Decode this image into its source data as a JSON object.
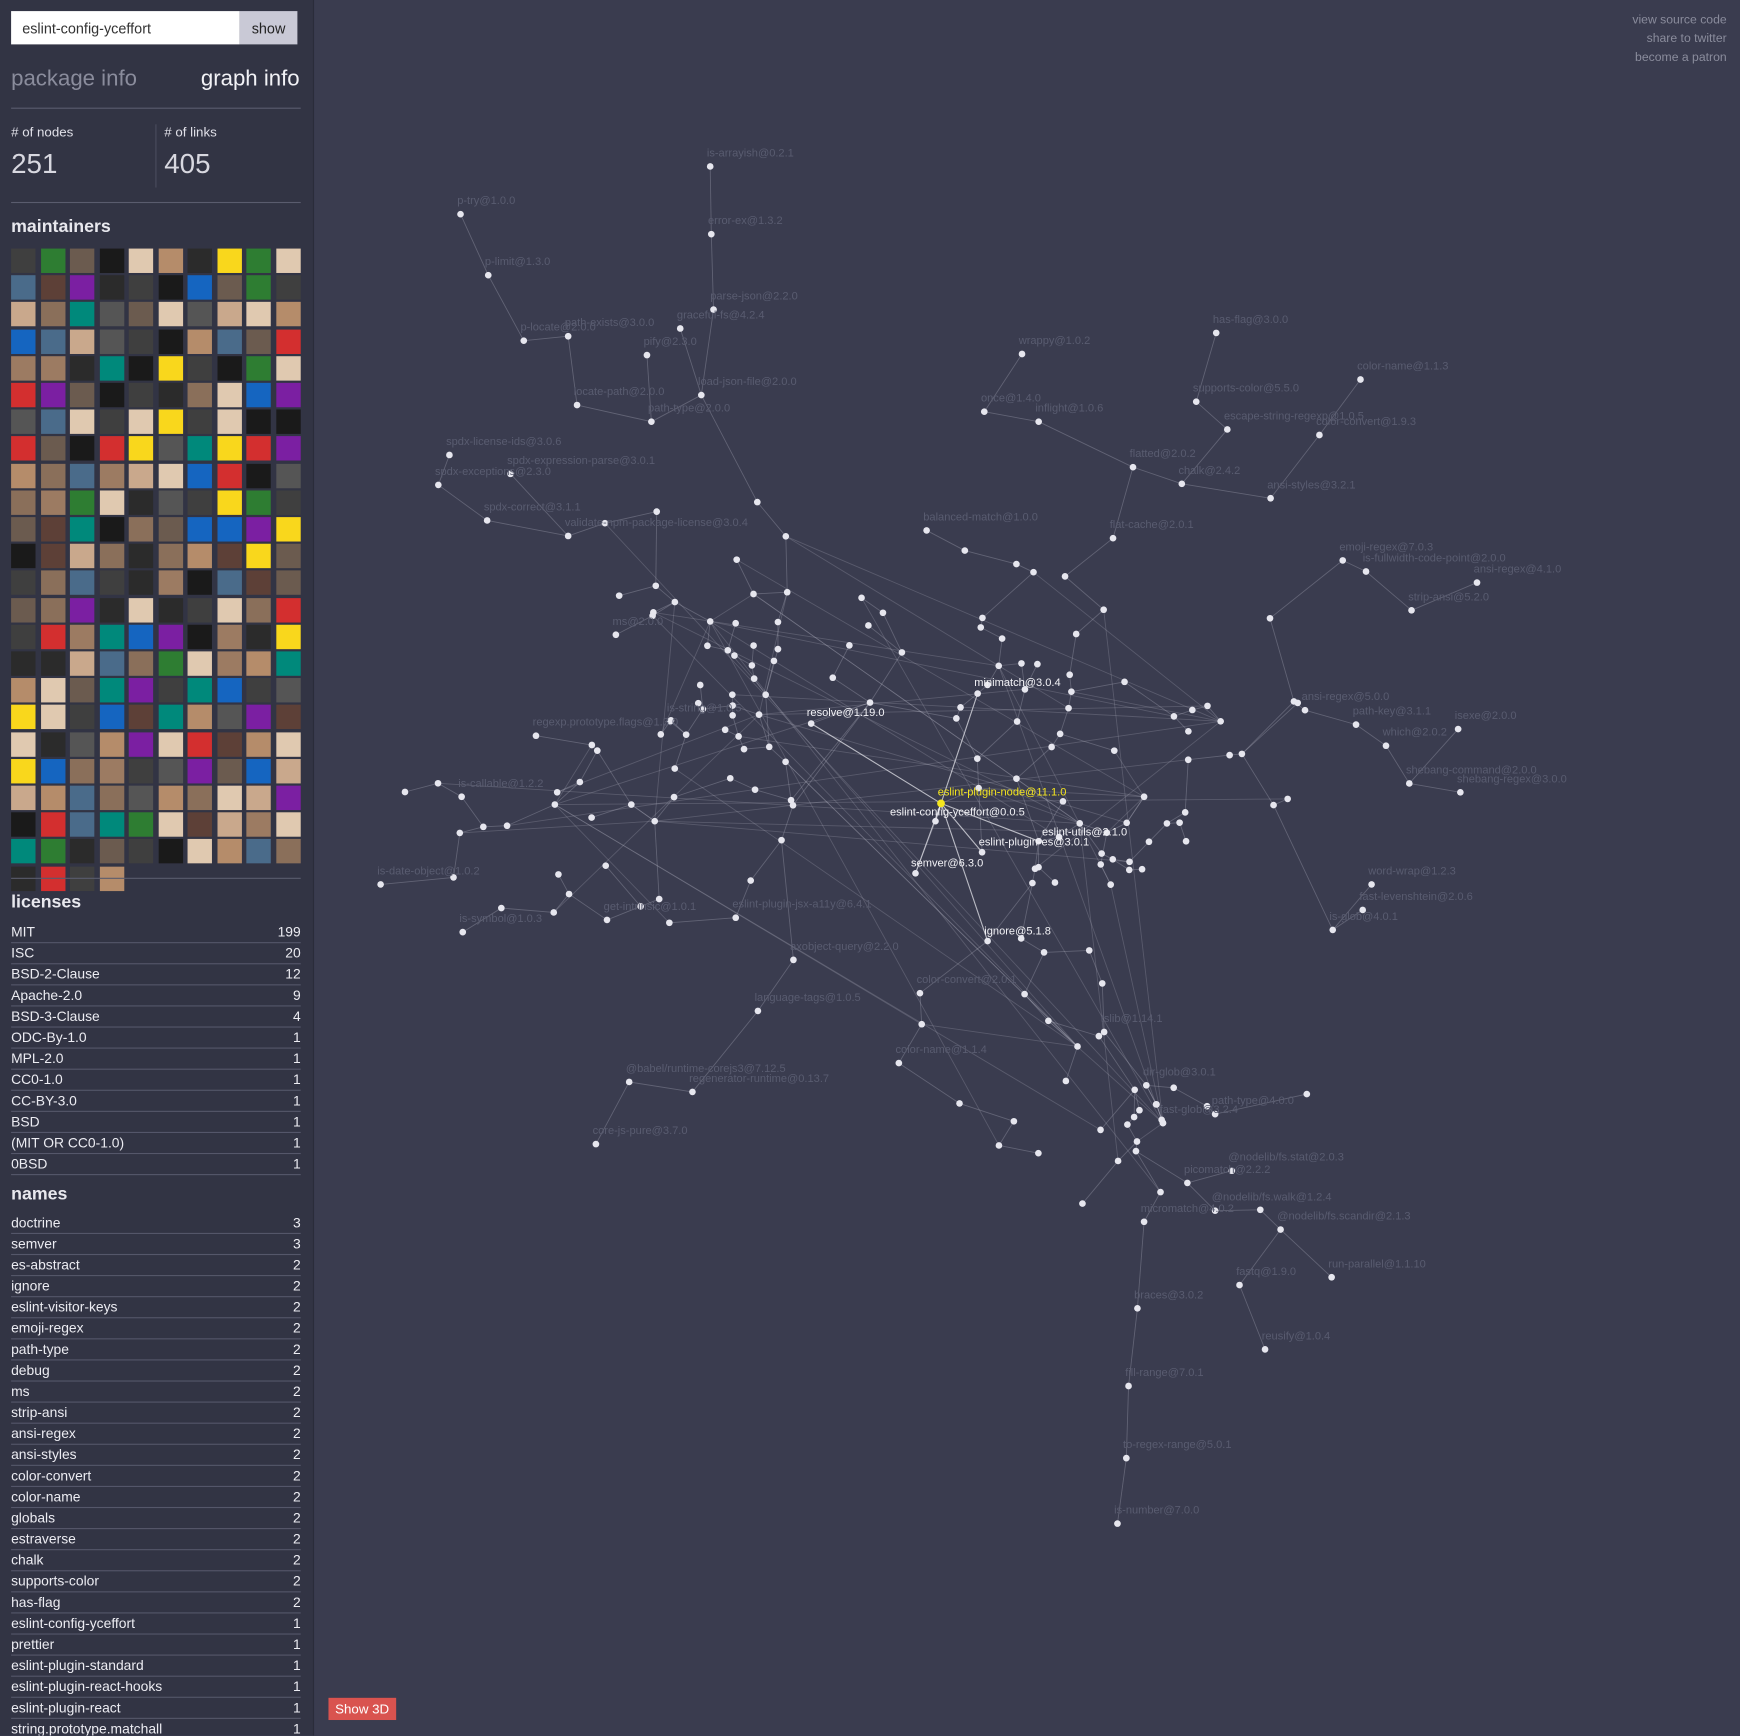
{
  "search": {
    "query": "eslint-config-yceffort",
    "button": "show"
  },
  "tabs": [
    "package info",
    "graph info"
  ],
  "stats": [
    {
      "label": "# of nodes",
      "value": 251
    },
    {
      "label": "# of links",
      "value": 405
    }
  ],
  "maintainers": {
    "title": "maintainers"
  },
  "licenses": {
    "title": "licenses",
    "rows": [
      {
        "name": "MIT",
        "count": 199
      },
      {
        "name": "ISC",
        "count": 20
      },
      {
        "name": "BSD-2-Clause",
        "count": 12
      },
      {
        "name": "Apache-2.0",
        "count": 9
      },
      {
        "name": "BSD-3-Clause",
        "count": 4
      },
      {
        "name": "ODC-By-1.0",
        "count": 1
      },
      {
        "name": "MPL-2.0",
        "count": 1
      },
      {
        "name": "CC0-1.0",
        "count": 1
      },
      {
        "name": "CC-BY-3.0",
        "count": 1
      },
      {
        "name": "BSD",
        "count": 1
      },
      {
        "name": "(MIT OR CC0-1.0)",
        "count": 1
      },
      {
        "name": "0BSD",
        "count": 1
      }
    ]
  },
  "names": {
    "title": "names",
    "rows": [
      {
        "name": "doctrine",
        "count": 3
      },
      {
        "name": "semver",
        "count": 3
      },
      {
        "name": "es-abstract",
        "count": 2
      },
      {
        "name": "ignore",
        "count": 2
      },
      {
        "name": "eslint-visitor-keys",
        "count": 2
      },
      {
        "name": "emoji-regex",
        "count": 2
      },
      {
        "name": "path-type",
        "count": 2
      },
      {
        "name": "debug",
        "count": 2
      },
      {
        "name": "ms",
        "count": 2
      },
      {
        "name": "strip-ansi",
        "count": 2
      },
      {
        "name": "ansi-regex",
        "count": 2
      },
      {
        "name": "ansi-styles",
        "count": 2
      },
      {
        "name": "color-convert",
        "count": 2
      },
      {
        "name": "color-name",
        "count": 2
      },
      {
        "name": "globals",
        "count": 2
      },
      {
        "name": "estraverse",
        "count": 2
      },
      {
        "name": "chalk",
        "count": 2
      },
      {
        "name": "supports-color",
        "count": 2
      },
      {
        "name": "has-flag",
        "count": 2
      },
      {
        "name": "eslint-config-yceffort",
        "count": 1
      },
      {
        "name": "prettier",
        "count": 1
      },
      {
        "name": "eslint-plugin-standard",
        "count": 1
      },
      {
        "name": "eslint-plugin-react-hooks",
        "count": 1
      },
      {
        "name": "eslint-plugin-react",
        "count": 1
      },
      {
        "name": "string.prototype.matchall",
        "count": 1
      }
    ]
  },
  "links": [
    "view source code",
    "share to twitter",
    "become a patron"
  ],
  "show3d": "Show 3D",
  "graph": {
    "selected_node": "eslint-plugin-node@11.1.0",
    "primary_nodes": [
      "resolve@1.19.0",
      "minimatch@3.0.4",
      "eslint-config-yceffort@0.0.5",
      "eslint-utils@2.1.0",
      "eslint-plugin-es@3.0.1",
      "semver@6.3.0",
      "ignore@5.1.8"
    ],
    "nodes": [
      "is-arrayish@0.2.1",
      "p-try@1.0.0",
      "error-ex@1.3.2",
      "p-limit@1.3.0",
      "parse-json@2.2.0",
      "graceful-fs@4.2.4",
      "path-exists@3.0.0",
      "p-locate@2.0.0",
      "pify@2.3.0",
      "locate-path@2.0.0",
      "load-json-file@2.0.0",
      "path-type@2.0.0",
      "spdx-license-ids@3.0.6",
      "spdx-expression-parse@3.0.1",
      "spdx-exceptions@2.3.0",
      "spdx-correct@3.1.1",
      "validate-npm-package-license@3.0.4",
      "has-flag@3.0.0",
      "color-name@1.1.3",
      "supports-color@5.5.0",
      "escape-string-regexp@1.0.5",
      "color-convert@1.9.3",
      "wrappy@1.0.2",
      "once@1.4.0",
      "inflight@1.0.6",
      "flatted@2.0.2",
      "chalk@2.4.2",
      "ansi-styles@3.2.1",
      "flat-cache@2.0.1",
      "balanced-match@1.0.0",
      "strip-ansi@5.2.0",
      "ansi-regex@4.1.0",
      "emoji-regex@7.0.3",
      "shebang-regex@3.0.0",
      "shebang-command@2.0.0",
      "which@2.0.2",
      "isexe@2.0.0",
      "path-key@3.1.1",
      "ansi-regex@5.0.0",
      "fast-levenshtein@2.0.6",
      "is-glob@4.0.1",
      "word-wrap@1.2.3",
      "core-js-pure@3.7.0",
      "@babel/runtime-corejs3@7.12.5",
      "regenerator-runtime@0.13.7",
      "axobject-query@2.2.0",
      "eslint-plugin-jsx-a11y@6.4.1",
      "language-tags@1.0.5",
      "color-convert@2.0.1",
      "color-name@1.1.4",
      "tslib@1.14.1",
      "dir-glob@3.0.1",
      "path-type@4.0.0",
      "@nodelib/fs.stat@2.0.3",
      "@nodelib/fs.walk@1.2.4",
      "@nodelib/fs.scandir@2.1.3",
      "run-parallel@1.1.10",
      "fastq@1.9.0",
      "reusify@1.0.4",
      "braces@3.0.2",
      "fill-range@7.0.1",
      "to-regex-range@5.0.1",
      "is-number@7.0.0",
      "micromatch@4.0.2",
      "picomatch@2.2.2",
      "fast-glob@3.2.4",
      "is-date-object@1.0.2",
      "is-symbol@1.0.3",
      "is-callable@1.2.2",
      "is-string@1.0.5",
      "regexp.prototype.flags@1.3.0",
      "ms@2.0.0",
      "get-intrinsic@1.0.1",
      "is-fullwidth-code-point@2.0.0"
    ]
  }
}
